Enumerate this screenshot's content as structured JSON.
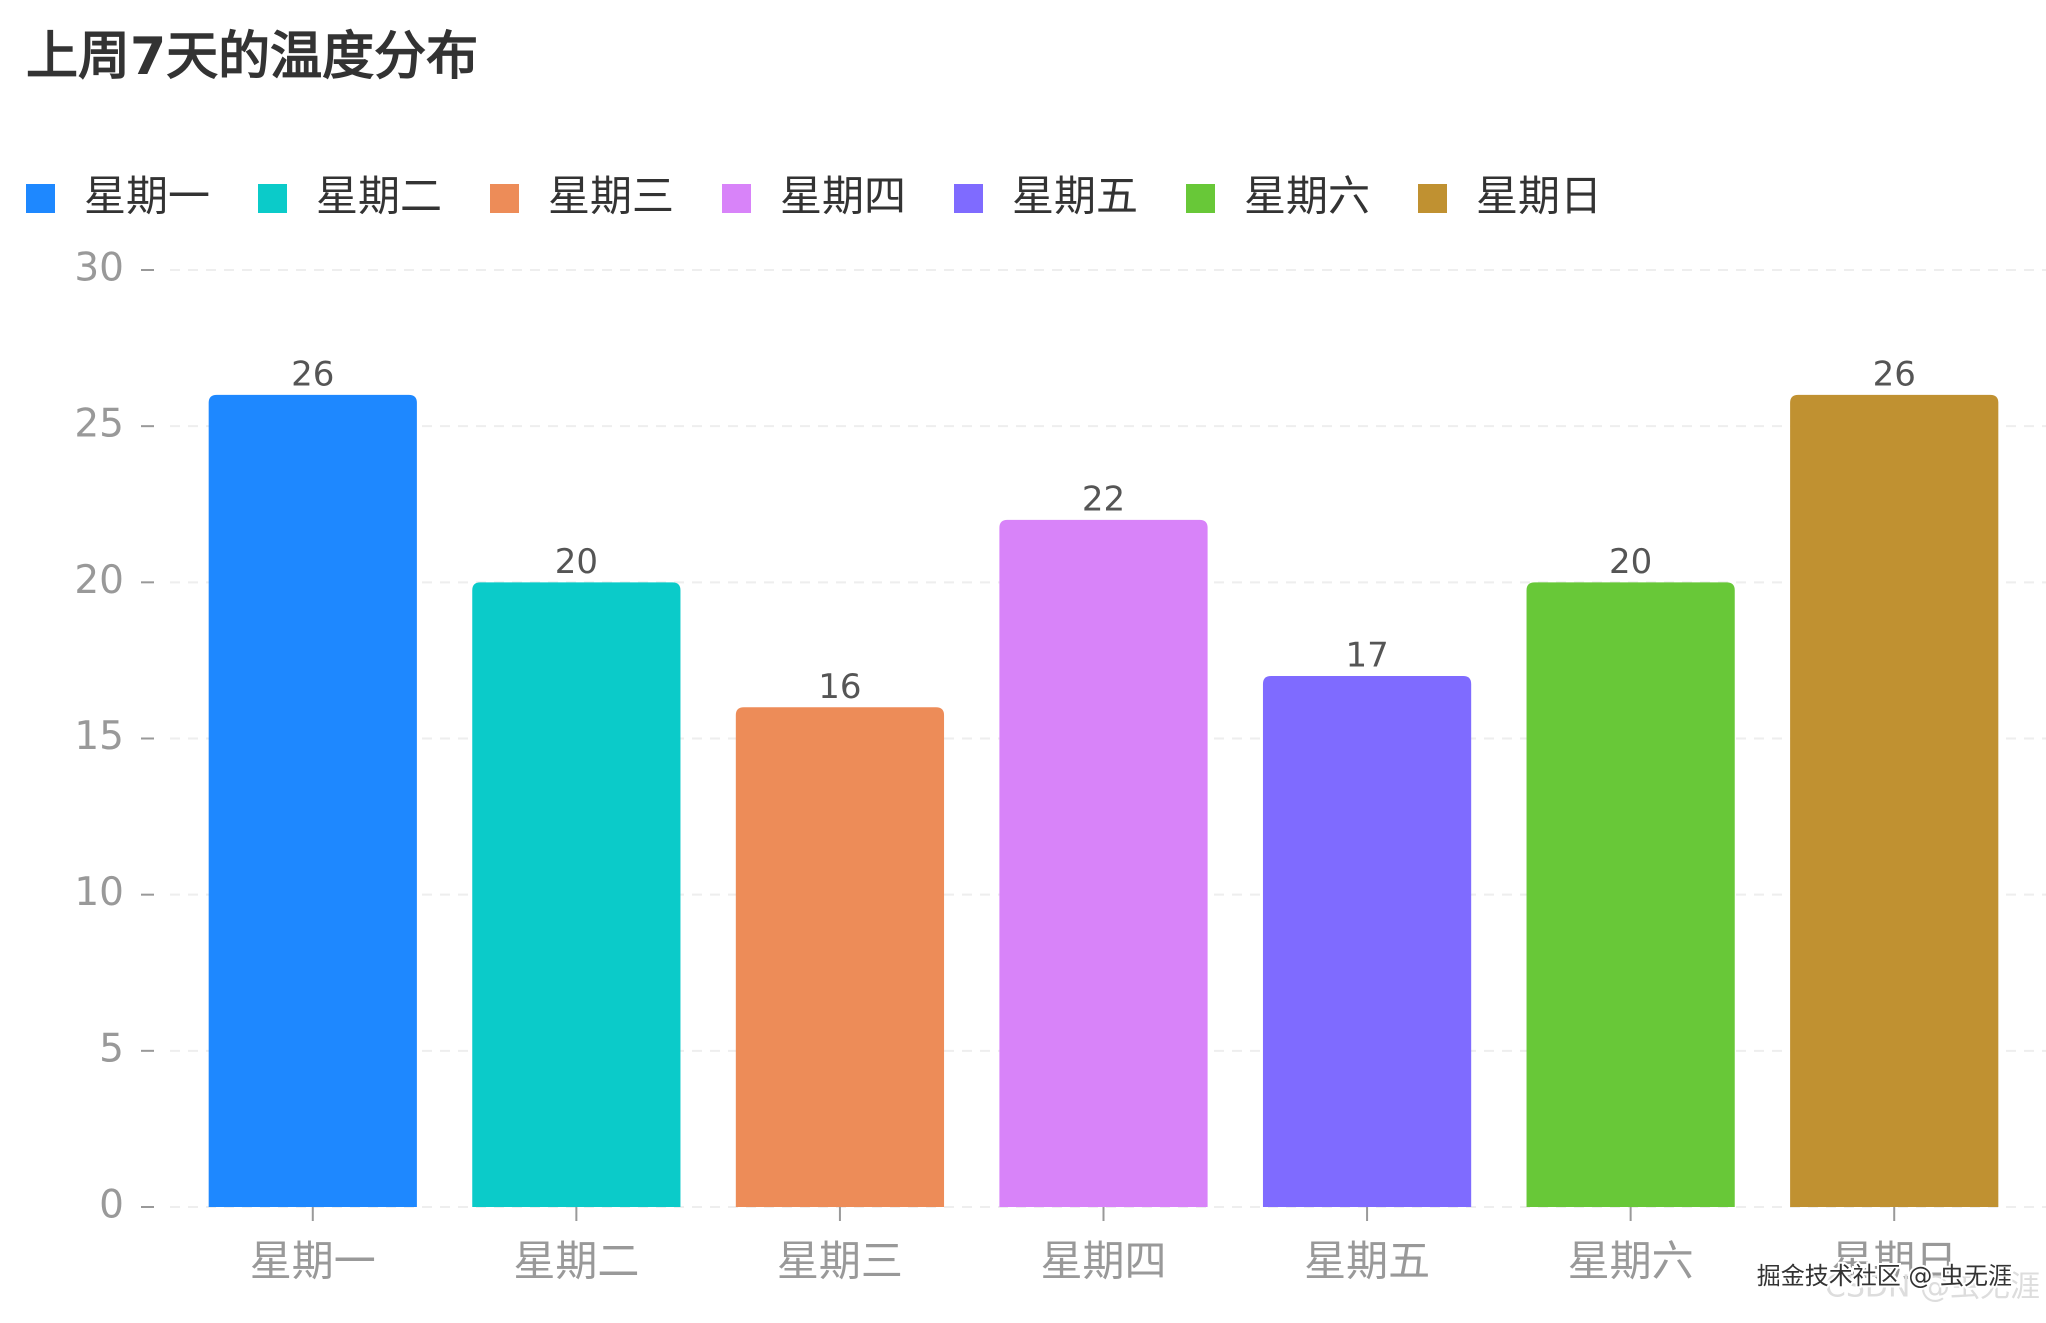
{
  "chart_data": {
    "type": "bar",
    "title": "上周7天的温度分布",
    "categories": [
      "星期一",
      "星期二",
      "星期三",
      "星期四",
      "星期五",
      "星期六",
      "星期日"
    ],
    "values": [
      26,
      20,
      16,
      22,
      17,
      20,
      26
    ],
    "colors": [
      "#1e88ff",
      "#0bcbc9",
      "#ed8c58",
      "#d883f9",
      "#7f6bff",
      "#68c838",
      "#c09131"
    ],
    "ylim": [
      0,
      30
    ],
    "yticks": [
      0,
      5,
      10,
      15,
      20,
      25,
      30
    ],
    "grid": true,
    "watermarks": [
      "掘金技术社区 @ 虫无涯",
      "CSDN @虫无涯"
    ]
  }
}
